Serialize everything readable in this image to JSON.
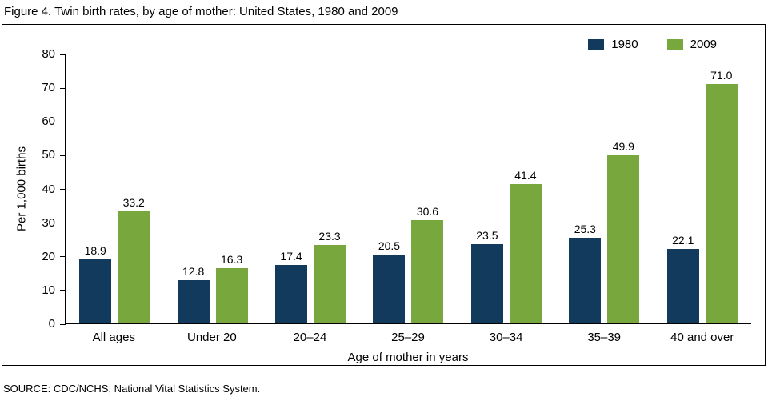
{
  "title": "Figure 4. Twin birth rates, by age of mother: United States, 1980 and 2009",
  "source": "SOURCE: CDC/NCHS, National Vital Statistics System.",
  "colors": {
    "series_1980": "#113a5d",
    "series_2009": "#78a73e",
    "axis": "#000000",
    "background": "#ffffff"
  },
  "chart_data": {
    "type": "bar",
    "title": "Figure 4. Twin birth rates, by age of mother: United States, 1980 and 2009",
    "categories": [
      "All ages",
      "Under 20",
      "20–24",
      "25–29",
      "30–34",
      "35–39",
      "40 and over"
    ],
    "series": [
      {
        "name": "1980",
        "color": "#113a5d",
        "values": [
          18.9,
          12.8,
          17.4,
          20.5,
          23.5,
          25.3,
          22.1
        ]
      },
      {
        "name": "2009",
        "color": "#78a73e",
        "values": [
          33.2,
          16.3,
          23.3,
          30.6,
          41.4,
          49.9,
          71.0
        ]
      }
    ],
    "xlabel": "Age of mother in years",
    "ylabel": "Per 1,000 births",
    "ylim": [
      0,
      80
    ],
    "yticks": [
      0,
      10,
      20,
      30,
      40,
      50,
      60,
      70,
      80
    ],
    "value_labels": true,
    "value_label_decimals": 1,
    "grid": false,
    "legend_position": "top-right"
  }
}
